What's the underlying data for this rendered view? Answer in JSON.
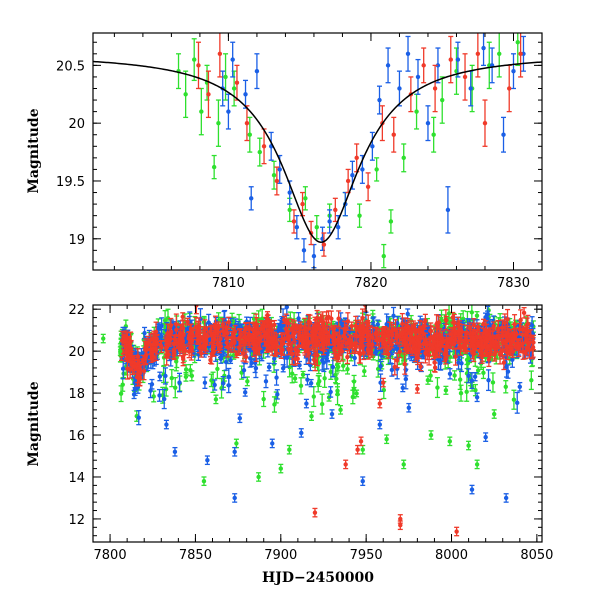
{
  "colors": {
    "green": "#2ee02e",
    "blue": "#1a5fe6",
    "red": "#f03a2a",
    "model": "#000000"
  },
  "chart_data": [
    {
      "type": "scatter",
      "panel": "top",
      "xlabel": "",
      "ylabel": "Magnitude",
      "xlim": [
        7800.5,
        7832
      ],
      "ylim": [
        20.78,
        18.73
      ],
      "y_inverted": true,
      "x_ticks": [
        7810,
        7820,
        7830
      ],
      "y_ticks": [
        19,
        19.5,
        20,
        20.5
      ],
      "x_tick_labels": [
        "7810",
        "7820",
        "7830"
      ],
      "y_tick_labels": [
        "19",
        "19.5",
        "20",
        "20.5"
      ],
      "model_curve": {
        "description_type": "lorentzian",
        "peak_x": 7816.5,
        "peak_mag": 18.97,
        "baseline_mag": 20.6,
        "width": 3.3,
        "color": "#000000"
      },
      "series": [
        {
          "color": "#2ee02e",
          "points": [
            [
              7806.5,
              20.45,
              0.15
            ],
            [
              7807.0,
              20.25,
              0.2
            ],
            [
              7807.6,
              20.55,
              0.18
            ],
            [
              7808.1,
              20.1,
              0.2
            ],
            [
              7808.5,
              20.35,
              0.15
            ],
            [
              7809.0,
              19.62,
              0.1
            ],
            [
              7809.3,
              20.0,
              0.2
            ],
            [
              7809.8,
              20.4,
              0.2
            ],
            [
              7810.4,
              20.3,
              0.15
            ],
            [
              7811.5,
              19.9,
              0.15
            ],
            [
              7812.2,
              19.75,
              0.12
            ],
            [
              7813.2,
              19.55,
              0.12
            ],
            [
              7814.3,
              19.25,
              0.1
            ],
            [
              7815.4,
              19.35,
              0.1
            ],
            [
              7816.2,
              19.1,
              0.1
            ],
            [
              7817.1,
              19.2,
              0.1
            ],
            [
              7818.2,
              19.3,
              0.1
            ],
            [
              7819.2,
              19.2,
              0.1
            ],
            [
              7820.4,
              19.6,
              0.1
            ],
            [
              7820.9,
              18.85,
              0.1
            ],
            [
              7821.4,
              19.15,
              0.1
            ],
            [
              7822.3,
              19.7,
              0.12
            ],
            [
              7823.2,
              20.1,
              0.15
            ],
            [
              7824.4,
              19.9,
              0.15
            ],
            [
              7825.0,
              20.2,
              0.2
            ],
            [
              7826.0,
              20.45,
              0.2
            ],
            [
              7827.1,
              20.3,
              0.2
            ],
            [
              7828.3,
              20.5,
              0.2
            ],
            [
              7829.0,
              20.6,
              0.2
            ],
            [
              7830.3,
              20.7,
              0.2
            ]
          ]
        },
        {
          "color": "#1a5fe6",
          "points": [
            [
              7809.6,
              20.3,
              0.15
            ],
            [
              7810.0,
              20.1,
              0.15
            ],
            [
              7810.3,
              20.55,
              0.15
            ],
            [
              7811.2,
              20.25,
              0.12
            ],
            [
              7811.6,
              19.35,
              0.1
            ],
            [
              7812.0,
              20.45,
              0.15
            ],
            [
              7813.0,
              19.8,
              0.12
            ],
            [
              7813.6,
              19.6,
              0.12
            ],
            [
              7814.3,
              19.4,
              0.1
            ],
            [
              7814.8,
              19.1,
              0.1
            ],
            [
              7815.3,
              18.9,
              0.1
            ],
            [
              7816.0,
              18.85,
              0.1
            ],
            [
              7816.6,
              19.0,
              0.1
            ],
            [
              7817.1,
              19.15,
              0.1
            ],
            [
              7817.7,
              19.1,
              0.1
            ],
            [
              7818.2,
              19.3,
              0.1
            ],
            [
              7818.7,
              19.55,
              0.12
            ],
            [
              7819.4,
              19.6,
              0.12
            ],
            [
              7820.1,
              19.8,
              0.12
            ],
            [
              7820.6,
              20.2,
              0.12
            ],
            [
              7821.2,
              20.5,
              0.15
            ],
            [
              7822.0,
              20.3,
              0.15
            ],
            [
              7822.6,
              20.6,
              0.15
            ],
            [
              7823.3,
              20.4,
              0.15
            ],
            [
              7824.0,
              20.0,
              0.15
            ],
            [
              7824.7,
              20.5,
              0.15
            ],
            [
              7825.4,
              19.25,
              0.2
            ],
            [
              7826.1,
              20.55,
              0.15
            ],
            [
              7827.0,
              20.3,
              0.15
            ],
            [
              7827.9,
              20.65,
              0.15
            ],
            [
              7828.5,
              20.5,
              0.15
            ],
            [
              7829.3,
              19.9,
              0.15
            ],
            [
              7830.0,
              20.45,
              0.15
            ],
            [
              7830.7,
              20.6,
              0.15
            ]
          ]
        },
        {
          "color": "#f03a2a",
          "points": [
            [
              7807.9,
              20.5,
              0.2
            ],
            [
              7808.6,
              20.25,
              0.2
            ],
            [
              7809.4,
              20.6,
              0.2
            ],
            [
              7810.6,
              20.35,
              0.15
            ],
            [
              7811.3,
              20.0,
              0.15
            ],
            [
              7812.5,
              19.8,
              0.15
            ],
            [
              7813.4,
              19.5,
              0.12
            ],
            [
              7814.6,
              19.15,
              0.1
            ],
            [
              7815.2,
              19.3,
              0.1
            ],
            [
              7815.8,
              19.05,
              0.1
            ],
            [
              7816.7,
              18.95,
              0.1
            ],
            [
              7817.5,
              19.25,
              0.1
            ],
            [
              7818.4,
              19.5,
              0.1
            ],
            [
              7819.0,
              19.7,
              0.12
            ],
            [
              7819.8,
              19.45,
              0.12
            ],
            [
              7820.8,
              20.0,
              0.15
            ],
            [
              7821.6,
              19.9,
              0.15
            ],
            [
              7822.8,
              20.25,
              0.15
            ],
            [
              7823.7,
              20.5,
              0.15
            ],
            [
              7824.5,
              20.3,
              0.2
            ],
            [
              7825.6,
              20.55,
              0.2
            ],
            [
              7826.6,
              20.4,
              0.2
            ],
            [
              7827.5,
              20.6,
              0.2
            ],
            [
              7828.0,
              20.0,
              0.2
            ],
            [
              7829.7,
              20.3,
              0.2
            ],
            [
              7830.5,
              20.6,
              0.2
            ]
          ]
        }
      ]
    },
    {
      "type": "scatter",
      "panel": "bottom",
      "xlabel": "HJD−2450000",
      "ylabel": "Magnitude",
      "xlim": [
        7790,
        8053
      ],
      "ylim": [
        22.2,
        10.9
      ],
      "y_inverted": true,
      "x_ticks": [
        7800,
        7850,
        7900,
        7950,
        8000,
        8050
      ],
      "y_ticks": [
        12,
        14,
        16,
        18,
        20,
        22
      ],
      "x_tick_labels": [
        "7800",
        "7850",
        "7900",
        "7950",
        "8000",
        "8050"
      ],
      "y_tick_labels": [
        "12",
        "14",
        "16",
        "18",
        "20",
        "22"
      ],
      "baseline": {
        "x_start": 7806,
        "x_end": 8048,
        "mean_mag": 20.6,
        "scatter": 0.45,
        "event_peak_x": 7816.5,
        "event_peak_mag": 19.0
      },
      "outliers": [
        {
          "color": "#2ee02e",
          "points": [
            [
              7796,
              20.6
            ],
            [
              7806,
              20.0
            ],
            [
              7855,
              13.8
            ],
            [
              7862,
              17.7
            ],
            [
              7874,
              15.6
            ],
            [
              7887,
              14.0
            ],
            [
              7900,
              14.4
            ],
            [
              7905,
              15.3
            ],
            [
              7918,
              16.9
            ],
            [
              7935,
              17.2
            ],
            [
              7948,
              15.3
            ],
            [
              7962,
              15.8
            ],
            [
              7972,
              14.6
            ],
            [
              7988,
              16.0
            ],
            [
              7999,
              15.7
            ],
            [
              8010,
              15.5
            ],
            [
              8015,
              14.6
            ],
            [
              8025,
              17.0
            ]
          ]
        },
        {
          "color": "#1a5fe6",
          "points": [
            [
              7833,
              16.5
            ],
            [
              7838,
              15.2
            ],
            [
              7857,
              14.8
            ],
            [
              7873,
              15.2
            ],
            [
              7873,
              13.0
            ],
            [
              7876,
              16.8
            ],
            [
              7895,
              15.6
            ],
            [
              7912,
              16.1
            ],
            [
              7915,
              17.5
            ],
            [
              7930,
              17.0
            ],
            [
              7948,
              13.8
            ],
            [
              7958,
              16.5
            ],
            [
              7975,
              17.3
            ],
            [
              8012,
              13.4
            ],
            [
              8015,
              17.8
            ],
            [
              8020,
              15.9
            ],
            [
              8032,
              13.0
            ],
            [
              8040,
              18.3
            ]
          ]
        },
        {
          "color": "#f03a2a",
          "points": [
            [
              7920,
              12.3
            ],
            [
              7938,
              14.6
            ],
            [
              7945,
              15.3
            ],
            [
              7947,
              15.7
            ],
            [
              7958,
              17.5
            ],
            [
              7960,
              18.5
            ],
            [
              7970,
              11.7
            ],
            [
              7970,
              12.0
            ],
            [
              7980,
              18.2
            ],
            [
              8003,
              11.4
            ]
          ]
        }
      ]
    }
  ]
}
